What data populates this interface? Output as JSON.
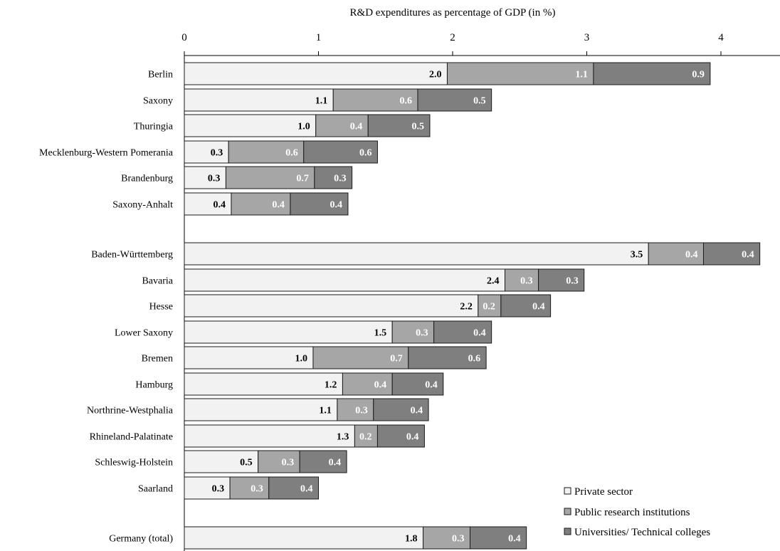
{
  "chart_data": {
    "type": "bar",
    "orientation": "horizontal",
    "stacked": true,
    "title": "",
    "xlabel": "R&D  expenditures as percentage of GDP (in %)",
    "ylabel": "",
    "xlim": [
      0,
      4.5
    ],
    "xticks": [
      "0",
      "1",
      "2",
      "3",
      "4"
    ],
    "categories": [
      "Berlin",
      "Saxony",
      "Thuringia",
      "Mecklenburg-Western Pomerania",
      "Brandenburg",
      "Saxony-Anhalt",
      "Baden-Württemberg",
      "Bavaria",
      "Hesse",
      "Lower Saxony",
      "Bremen",
      "Hamburg",
      "Northrine-Westphalia",
      "Rhineland-Palatinate",
      "Schleswig-Holstein",
      "Saarland",
      "Germany (total)"
    ],
    "series": [
      {
        "name": "Private sector",
        "color": "#f2f2f2",
        "label_color": "#000000",
        "values": [
          1.96,
          1.11,
          0.98,
          0.33,
          0.31,
          0.35,
          3.46,
          2.39,
          2.19,
          1.55,
          0.96,
          1.18,
          1.14,
          1.27,
          0.55,
          0.34,
          1.78
        ],
        "labels": [
          "2.0",
          "1.1",
          "1.0",
          "0.3",
          "0.3",
          "0.4",
          "3.5",
          "2.4",
          "2.2",
          "1.5",
          "1.0",
          "1.2",
          "1.1",
          "1.3",
          "0.5",
          "0.3",
          "1.8"
        ]
      },
      {
        "name": "Public research institutions",
        "color": "#a6a6a6",
        "label_color": "#ffffff",
        "values": [
          1.09,
          0.63,
          0.39,
          0.56,
          0.66,
          0.44,
          0.41,
          0.25,
          0.17,
          0.31,
          0.71,
          0.37,
          0.27,
          0.17,
          0.31,
          0.29,
          0.35
        ],
        "labels": [
          "1.1",
          "0.6",
          "0.4",
          "0.6",
          "0.7",
          "0.4",
          "0.4",
          "0.3",
          "0.2",
          "0.3",
          "0.7",
          "0.4",
          "0.3",
          "0.2",
          "0.3",
          "0.3",
          "0.3"
        ]
      },
      {
        "name": "Universities/ Technical colleges",
        "color": "#7f7f7f",
        "label_color": "#ffffff",
        "values": [
          0.87,
          0.55,
          0.46,
          0.55,
          0.28,
          0.43,
          0.42,
          0.34,
          0.37,
          0.43,
          0.58,
          0.38,
          0.41,
          0.35,
          0.35,
          0.37,
          0.42
        ],
        "labels": [
          "0.9",
          "0.5",
          "0.5",
          "0.6",
          "0.3",
          "0.4",
          "0.4",
          "0.3",
          "0.4",
          "0.4",
          "0.6",
          "0.4",
          "0.4",
          "0.4",
          "0.4",
          "0.4",
          "0.4"
        ]
      }
    ],
    "groups": [
      {
        "name": "",
        "rows": [
          0,
          1,
          2,
          3,
          4,
          5
        ]
      },
      {
        "name": "",
        "rows": [
          6,
          7,
          8,
          9,
          10,
          11,
          12,
          13,
          14,
          15
        ]
      },
      {
        "name": "",
        "rows": [
          16
        ]
      }
    ],
    "grid": false,
    "legend_position": "bottom-right"
  }
}
